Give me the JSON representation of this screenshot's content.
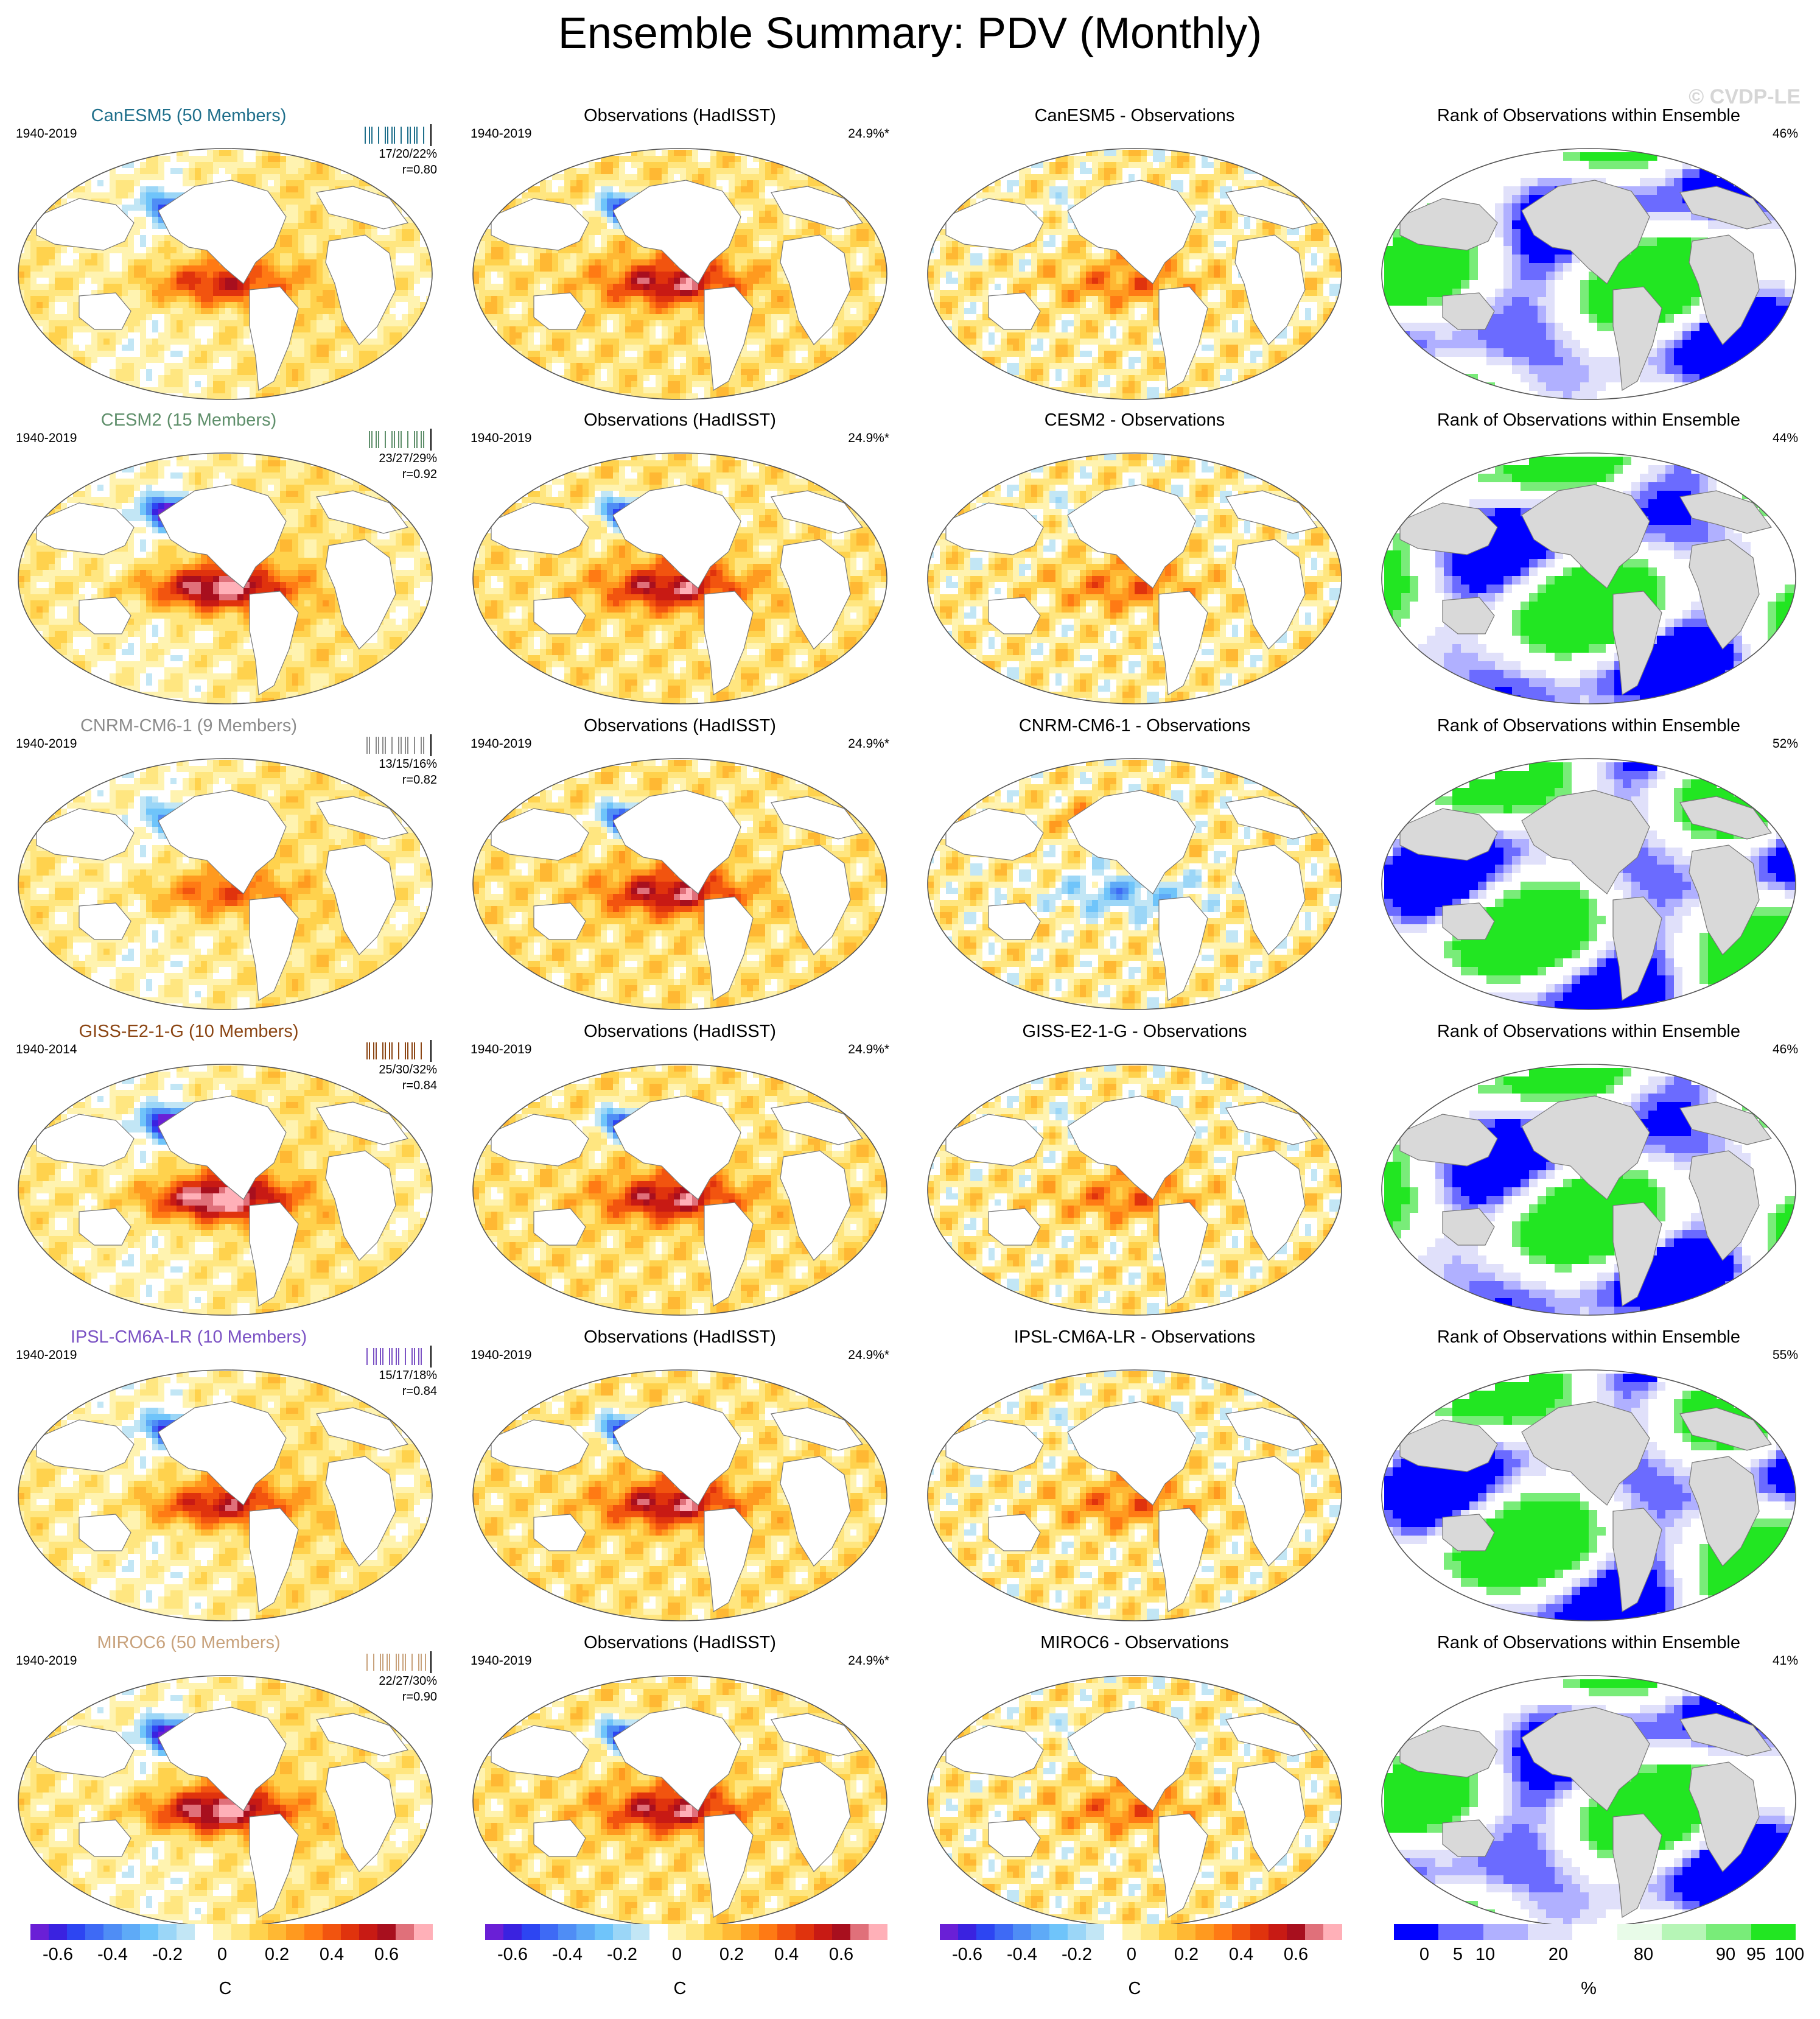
{
  "title": "Ensemble Summary: PDV (Monthly)",
  "watermark": "© CVDP-LE",
  "obs_title": "Observations (HadISST)",
  "obs_period": "1940-2019",
  "obs_pct": "24.9%*",
  "rank_title": "Rank of Observations within Ensemble",
  "rows": [
    {
      "model": "CanESM5",
      "model_title": "CanESM5 (50 Members)",
      "title_color": "#1f6f8b",
      "period": "1940-2019",
      "stats": "17/20/22%",
      "r": "r=0.80",
      "diff_title": "CanESM5 - Observations",
      "rank_pct": "46%",
      "model_amp": 0.55,
      "diff_sign": 1,
      "rank_theme": 0
    },
    {
      "model": "CESM2",
      "model_title": "CESM2 (15 Members)",
      "title_color": "#5f8f6b",
      "period": "1940-2019",
      "stats": "23/27/29%",
      "r": "r=0.92",
      "diff_title": "CESM2 - Observations",
      "rank_pct": "44%",
      "model_amp": 0.8,
      "diff_sign": 1,
      "rank_theme": 1
    },
    {
      "model": "CNRM-CM6-1",
      "model_title": "CNRM-CM6-1 (9 Members)",
      "title_color": "#8c8c8c",
      "period": "1940-2019",
      "stats": "13/15/16%",
      "r": "r=0.82",
      "diff_title": "CNRM-CM6-1 - Observations",
      "rank_pct": "52%",
      "model_amp": 0.4,
      "diff_sign": -1,
      "rank_theme": 2
    },
    {
      "model": "GISS-E2-1-G",
      "model_title": "GISS-E2-1-G (10 Members)",
      "title_color": "#8b4513",
      "period": "1940-2014",
      "stats": "25/30/32%",
      "r": "r=0.84",
      "diff_title": "GISS-E2-1-G - Observations",
      "rank_pct": "46%",
      "model_amp": 0.85,
      "diff_sign": 1,
      "rank_theme": 1
    },
    {
      "model": "IPSL-CM6A-LR",
      "model_title": "IPSL-CM6A-LR (10 Members)",
      "title_color": "#7b52c4",
      "period": "1940-2019",
      "stats": "15/17/18%",
      "r": "r=0.84",
      "diff_title": "IPSL-CM6A-LR - Observations",
      "rank_pct": "55%",
      "model_amp": 0.6,
      "diff_sign": 1,
      "rank_theme": 2
    },
    {
      "model": "MIROC6",
      "model_title": "MIROC6 (50 Members)",
      "title_color": "#c8a27c",
      "period": "1940-2019",
      "stats": "22/27/30%",
      "r": "r=0.90",
      "diff_title": "MIROC6 - Observations",
      "rank_pct": "41%",
      "model_amp": 0.8,
      "diff_sign": 1,
      "rank_theme": 0
    }
  ],
  "colorbar_sst": {
    "colors": [
      "#6a1fd6",
      "#3a22e0",
      "#2d45f2",
      "#3e6af5",
      "#4f8df5",
      "#5eaaf7",
      "#6fc4fa",
      "#9bd6f7",
      "#c2e6f5",
      "#ffffff",
      "#fff3b0",
      "#ffe680",
      "#ffd24d",
      "#ffb833",
      "#ff9a1f",
      "#ff7a14",
      "#f2540f",
      "#e0330d",
      "#c81a14",
      "#a80f1e",
      "#e0707a",
      "#ffb0b8"
    ],
    "ticks": [
      "-0.6",
      "-0.4",
      "-0.2",
      "0",
      "0.2",
      "0.4",
      "0.6"
    ],
    "unit": "C"
  },
  "colorbar_rank": {
    "colors": [
      "#0000ff",
      "#6b6bff",
      "#b0b0ff",
      "#e0e0fa",
      "#ffffff",
      "#e8fbe8",
      "#b6f5b6",
      "#79ec79",
      "#22e622"
    ],
    "ticks": [
      "0",
      "5",
      "10",
      "20",
      "80",
      "90",
      "95",
      "100"
    ],
    "unit": "%"
  }
}
